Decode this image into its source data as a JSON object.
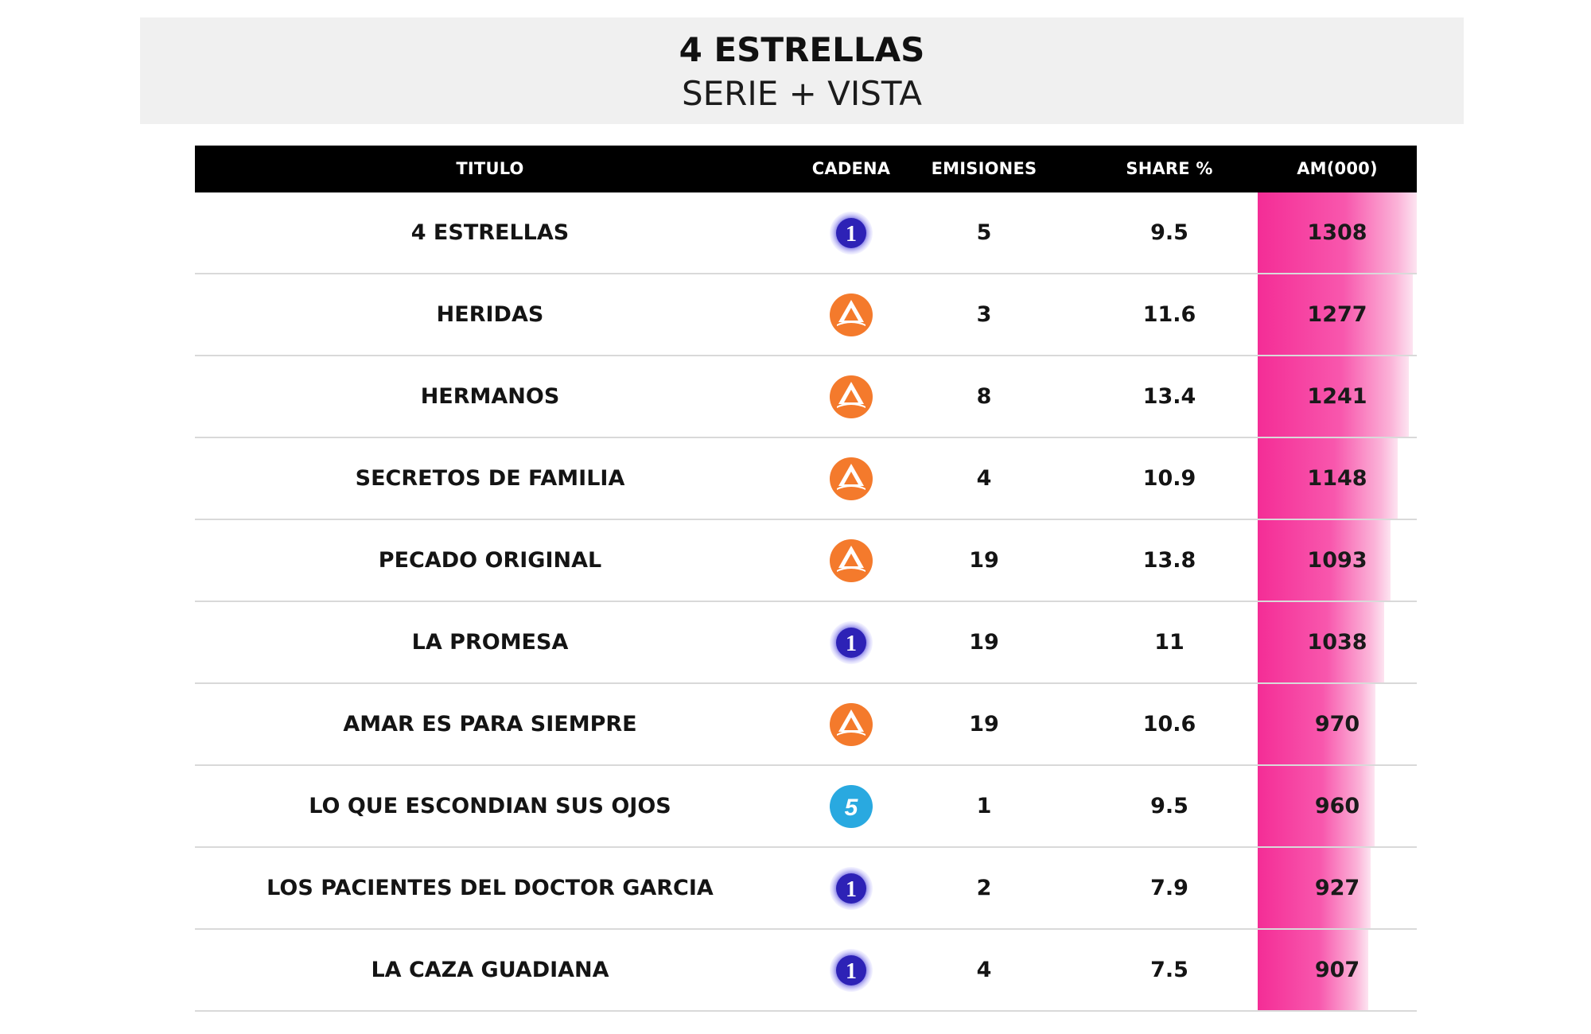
{
  "header": {
    "title": "4 ESTRELLAS",
    "subtitle": "SERIE + VISTA"
  },
  "table": {
    "columns": [
      "TITULO",
      "CADENA",
      "EMISIONES",
      "SHARE %",
      "AM(000)"
    ],
    "colors": {
      "header_bg": "#000000",
      "am_accent": "#f42d96",
      "tve": "#3a2fd0",
      "antena3": "#f47a2c",
      "tele5": "#29a9e0"
    },
    "rows": [
      {
        "titulo": "4 ESTRELLAS",
        "cadena": "tve-la1-icon",
        "emisiones": "5",
        "share": "9.5",
        "am": "1308"
      },
      {
        "titulo": "HERIDAS",
        "cadena": "antena3-icon",
        "emisiones": "3",
        "share": "11.6",
        "am": "1277"
      },
      {
        "titulo": "HERMANOS",
        "cadena": "antena3-icon",
        "emisiones": "8",
        "share": "13.4",
        "am": "1241"
      },
      {
        "titulo": "SECRETOS DE FAMILIA",
        "cadena": "antena3-icon",
        "emisiones": "4",
        "share": "10.9",
        "am": "1148"
      },
      {
        "titulo": "PECADO ORIGINAL",
        "cadena": "antena3-icon",
        "emisiones": "19",
        "share": "13.8",
        "am": "1093"
      },
      {
        "titulo": "LA PROMESA",
        "cadena": "tve-la1-icon",
        "emisiones": "19",
        "share": "11",
        "am": "1038"
      },
      {
        "titulo": "AMAR ES PARA SIEMPRE",
        "cadena": "antena3-icon",
        "emisiones": "19",
        "share": "10.6",
        "am": "970"
      },
      {
        "titulo": "LO QUE ESCONDIAN SUS OJOS",
        "cadena": "telecinco-icon",
        "emisiones": "1",
        "share": "9.5",
        "am": "960"
      },
      {
        "titulo": "LOS PACIENTES DEL DOCTOR GARCIA",
        "cadena": "tve-la1-icon",
        "emisiones": "2",
        "share": "7.9",
        "am": "927"
      },
      {
        "titulo": "LA CAZA GUADIANA",
        "cadena": "tve-la1-icon",
        "emisiones": "4",
        "share": "7.5",
        "am": "907"
      }
    ]
  }
}
